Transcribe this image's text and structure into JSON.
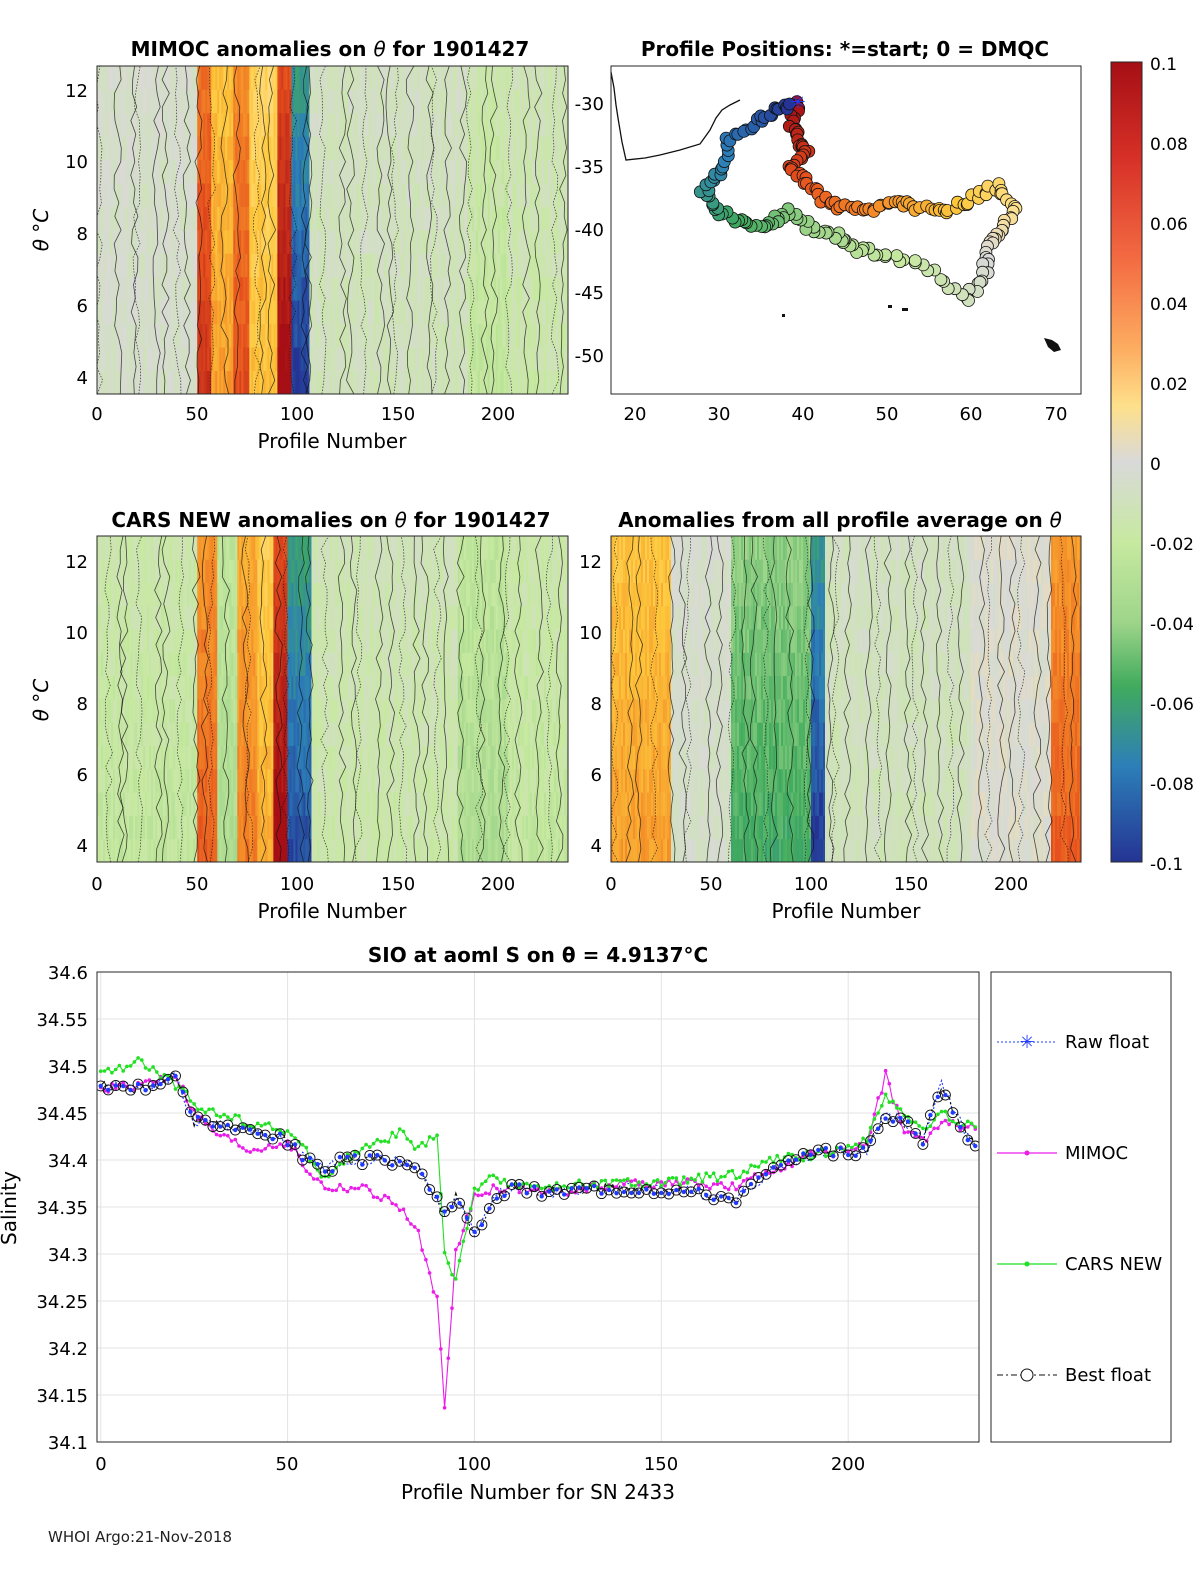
{
  "footer": "WHOI Argo:21-Nov-2018",
  "colorbar": {
    "tick_labels": [
      "0.1",
      "0.08",
      "0.06",
      "0.04",
      "0.02",
      "0",
      "-0.02",
      "-0.04",
      "-0.06",
      "-0.08",
      "-0.1"
    ],
    "range": [
      -0.1,
      0.1
    ]
  },
  "chart_data": [
    {
      "type": "heatmap",
      "title_prefix": "MIMOC anomalies on ",
      "title_symbol": "θ",
      "title_suffix": "  for 1901427",
      "xlabel": "Profile Number",
      "ylabel": "θ °C",
      "xticks": [
        "0",
        "50",
        "100",
        "150",
        "200"
      ],
      "yticks": [
        "4",
        "6",
        "8",
        "10",
        "12"
      ],
      "xlim": [
        0,
        235
      ],
      "ylim": [
        3.6,
        12.6
      ],
      "bands": [
        {
          "x0": 0,
          "x1": 50,
          "value": -0.005
        },
        {
          "x0": 50,
          "x1": 57,
          "value": 0.075
        },
        {
          "x0": 57,
          "x1": 68,
          "value": 0.04
        },
        {
          "x0": 68,
          "x1": 76,
          "value": 0.065
        },
        {
          "x0": 76,
          "x1": 90,
          "value": 0.03
        },
        {
          "x0": 90,
          "x1": 97,
          "value": 0.095
        },
        {
          "x0": 97,
          "x1": 106,
          "value": -0.09
        },
        {
          "x0": 106,
          "x1": 185,
          "value": -0.01
        },
        {
          "x0": 185,
          "x1": 205,
          "value": -0.02
        },
        {
          "x0": 205,
          "x1": 235,
          "value": -0.015
        }
      ]
    },
    {
      "type": "scatter",
      "title": "Profile Positions: *=start; 0 = DMQC",
      "xticks": [
        "20",
        "30",
        "40",
        "50",
        "60",
        "70"
      ],
      "yticks": [
        "-30",
        "-35",
        "-40",
        "-45",
        "-50"
      ],
      "xlim": [
        17,
        73
      ],
      "ylim": [
        -53,
        -27
      ],
      "start": {
        "lon": 39.5,
        "lat": -30
      }
    },
    {
      "type": "heatmap",
      "title_prefix": "CARS NEW anomalies on ",
      "title_symbol": "θ",
      "title_suffix": " for 1901427",
      "xlabel": "Profile Number",
      "ylabel": "θ °C",
      "xticks": [
        "0",
        "50",
        "100",
        "150",
        "200"
      ],
      "yticks": [
        "4",
        "6",
        "8",
        "10",
        "12"
      ],
      "xlim": [
        0,
        235
      ],
      "ylim": [
        3.6,
        12.6
      ],
      "bands": [
        {
          "x0": 0,
          "x1": 50,
          "value": -0.02
        },
        {
          "x0": 50,
          "x1": 60,
          "value": 0.06
        },
        {
          "x0": 60,
          "x1": 70,
          "value": -0.03
        },
        {
          "x0": 70,
          "x1": 80,
          "value": 0.05
        },
        {
          "x0": 80,
          "x1": 88,
          "value": 0.035
        },
        {
          "x0": 88,
          "x1": 95,
          "value": 0.095
        },
        {
          "x0": 95,
          "x1": 107,
          "value": -0.085
        },
        {
          "x0": 107,
          "x1": 180,
          "value": -0.015
        },
        {
          "x0": 180,
          "x1": 205,
          "value": -0.03
        },
        {
          "x0": 205,
          "x1": 235,
          "value": -0.02
        }
      ]
    },
    {
      "type": "heatmap",
      "title_prefix": "Anomalies from all profile average on ",
      "title_symbol": "θ",
      "title_suffix": "",
      "xlabel": "Profile Number",
      "xticks": [
        "0",
        "50",
        "100",
        "150",
        "200"
      ],
      "yticks": [
        "4",
        "6",
        "8",
        "10",
        "12"
      ],
      "xlim": [
        0,
        235
      ],
      "ylim": [
        3.6,
        12.6
      ],
      "bands": [
        {
          "x0": 0,
          "x1": 30,
          "value": 0.04
        },
        {
          "x0": 30,
          "x1": 60,
          "value": -0.005
        },
        {
          "x0": 60,
          "x1": 100,
          "value": -0.055
        },
        {
          "x0": 100,
          "x1": 107,
          "value": -0.09
        },
        {
          "x0": 107,
          "x1": 180,
          "value": -0.01
        },
        {
          "x0": 180,
          "x1": 220,
          "value": 0.0
        },
        {
          "x0": 220,
          "x1": 235,
          "value": 0.06
        }
      ]
    },
    {
      "type": "line",
      "title": "SIO at aoml S on θ = 4.9137°C",
      "xlabel": "Profile Number for SN 2433",
      "ylabel": "Salinity",
      "xticks": [
        "0",
        "50",
        "100",
        "150",
        "200"
      ],
      "yticks": [
        "34.6",
        "34.55",
        "34.5",
        "34.45",
        "34.4",
        "34.35",
        "34.3",
        "34.25",
        "34.2",
        "34.15",
        "34.1"
      ],
      "xlim": [
        -1,
        235
      ],
      "ylim": [
        34.1,
        34.6
      ],
      "legend": [
        "Raw float",
        "MIMOC",
        "CARS NEW",
        "Best float"
      ],
      "x_knots": [
        0,
        10,
        20,
        25,
        30,
        40,
        50,
        55,
        60,
        65,
        70,
        80,
        85,
        90,
        92,
        95,
        100,
        105,
        110,
        120,
        130,
        140,
        150,
        160,
        170,
        180,
        190,
        200,
        205,
        210,
        215,
        220,
        225,
        230,
        234
      ],
      "series": [
        {
          "name": "Raw float",
          "values": [
            34.48,
            34.475,
            34.49,
            34.44,
            34.44,
            34.43,
            34.42,
            34.4,
            34.39,
            34.4,
            34.4,
            34.4,
            34.39,
            34.36,
            34.34,
            34.36,
            34.32,
            34.36,
            34.37,
            34.365,
            34.37,
            34.37,
            34.37,
            34.365,
            34.36,
            34.39,
            34.405,
            34.41,
            34.41,
            34.45,
            34.44,
            34.42,
            34.48,
            34.44,
            34.41
          ]
        },
        {
          "name": "MIMOC",
          "values": [
            34.475,
            34.48,
            34.49,
            34.45,
            34.43,
            34.41,
            34.42,
            34.39,
            34.37,
            34.37,
            34.37,
            34.35,
            34.32,
            34.25,
            34.14,
            34.3,
            34.36,
            34.37,
            34.37,
            34.365,
            34.37,
            34.375,
            34.375,
            34.375,
            34.37,
            34.39,
            34.405,
            34.41,
            34.42,
            34.49,
            34.43,
            34.42,
            34.44,
            34.435,
            34.435
          ]
        },
        {
          "name": "CARS NEW",
          "values": [
            34.49,
            34.505,
            34.48,
            34.46,
            34.45,
            34.44,
            34.43,
            34.41,
            34.38,
            34.4,
            34.41,
            34.43,
            34.41,
            34.43,
            34.3,
            34.27,
            34.37,
            34.38,
            34.375,
            34.37,
            34.375,
            34.375,
            34.375,
            34.38,
            34.385,
            34.4,
            34.405,
            34.415,
            34.42,
            34.47,
            34.45,
            34.43,
            34.45,
            34.44,
            34.435
          ]
        },
        {
          "name": "Best float",
          "values": [
            34.48,
            34.475,
            34.49,
            34.44,
            34.44,
            34.43,
            34.42,
            34.4,
            34.39,
            34.4,
            34.4,
            34.4,
            34.39,
            34.36,
            34.34,
            34.36,
            34.32,
            34.36,
            34.37,
            34.365,
            34.37,
            34.37,
            34.37,
            34.365,
            34.36,
            34.39,
            34.405,
            34.41,
            34.41,
            34.45,
            34.44,
            34.42,
            34.48,
            34.44,
            34.41
          ]
        }
      ]
    }
  ]
}
